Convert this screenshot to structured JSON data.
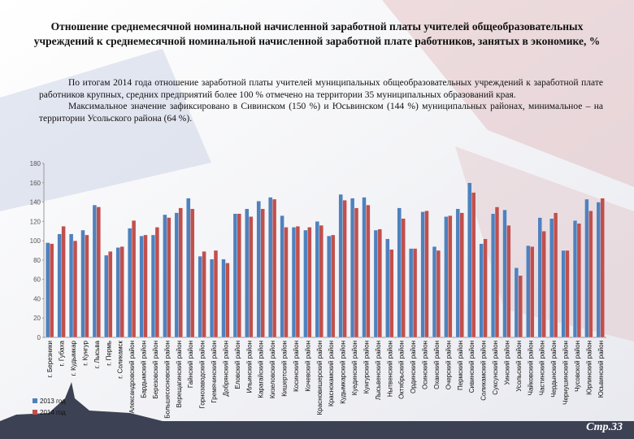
{
  "title": "Отношение среднемесячной номинальной начисленной заработной платы учителей общеобразовательных учреждений к среднемесячной номинальной начисленной заработной плате работников, занятых в экономике, %",
  "paragraphs": [
    "По итогам 2014 года отношение заработной платы учителей муниципальных общеобразовательных учреждений к заработной плате работников крупных, средних предприятий более 100 % отмечено на территории 35 муниципальных образований края.",
    "Максимальное значение зафиксировано в Сивинском (150 %) и Юсьвинском (144 %) муниципальных районах, минимальное – на территории Усольского района (64 %)."
  ],
  "page_number": "Стр.33",
  "chart_data": {
    "type": "bar",
    "categories": [
      "г. Березники",
      "г. Губаха",
      "г. Кудымкар",
      "г. Кунгур",
      "г. Лысьва",
      "г. Пермь",
      "г. Соликамск",
      "Александровский район",
      "Бардымский район",
      "Березовский район",
      "Большесосновский район",
      "Верещагинский район",
      "Гайнский район",
      "Горнозаводский район",
      "Гремячинский район",
      "Добрянский район",
      "Еловский район",
      "Ильинский район",
      "Карагайский район",
      "Кизеловский район",
      "Кишертский район",
      "Косинский район",
      "Кочевский район",
      "Красновишерский район",
      "Краснокамский район",
      "Кудымкарский район",
      "Куединский район",
      "Кунгурский район",
      "Лысьвенский район",
      "Нытвенский район",
      "Октябрьский район",
      "Ординский район",
      "Осинский район",
      "Оханский район",
      "Очерский район",
      "Пермский район",
      "Сивинский район",
      "Соликамский район",
      "Суксунский район",
      "Уинский район",
      "Усольский район",
      "Чайковский район",
      "Частинский район",
      "Чердынский район",
      "Чернушинский район",
      "Чусовской район",
      "Юрлинский район",
      "Юсьвинский район"
    ],
    "series": [
      {
        "name": "2013 год",
        "color": "#4f81bd",
        "values": [
          98,
          107,
          107,
          111,
          137,
          85,
          93,
          113,
          105,
          106,
          127,
          129,
          144,
          84,
          81,
          81,
          128,
          133,
          141,
          145,
          126,
          114,
          111,
          120,
          105,
          148,
          144,
          145,
          111,
          102,
          134,
          92,
          130,
          94,
          125,
          133,
          160,
          97,
          128,
          132,
          72,
          95,
          124,
          123,
          90,
          121,
          143,
          140
        ]
      },
      {
        "name": "2014 год",
        "color": "#c0504d",
        "values": [
          97,
          115,
          100,
          106,
          135,
          89,
          94,
          121,
          106,
          114,
          124,
          134,
          133,
          89,
          90,
          77,
          128,
          125,
          133,
          143,
          114,
          115,
          114,
          116,
          106,
          142,
          134,
          137,
          112,
          91,
          123,
          92,
          131,
          90,
          126,
          129,
          150,
          102,
          135,
          116,
          64,
          94,
          110,
          129,
          90,
          118,
          131,
          144
        ]
      }
    ],
    "ylim": [
      0,
      180
    ],
    "yticks": [
      0,
      20,
      40,
      60,
      80,
      100,
      120,
      140,
      160,
      180
    ],
    "grid": false
  }
}
